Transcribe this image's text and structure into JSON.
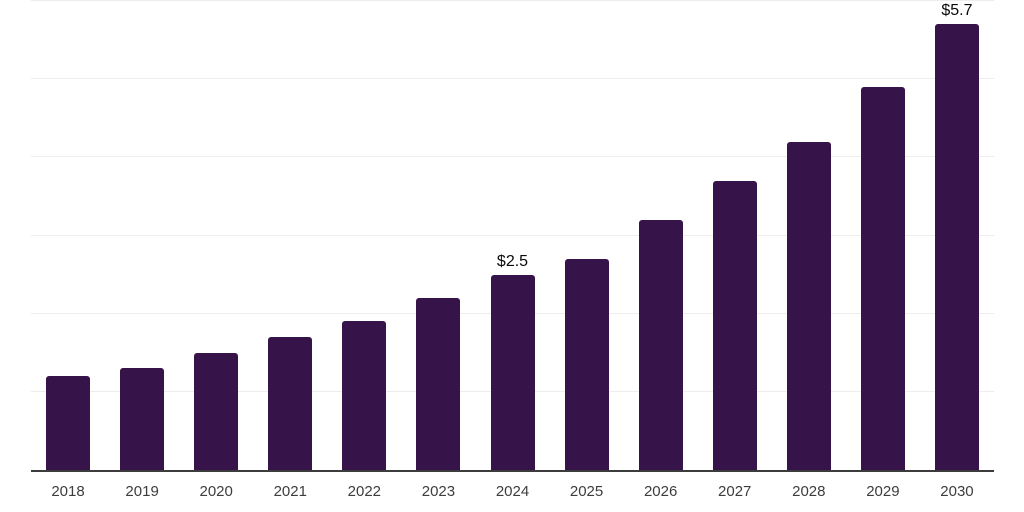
{
  "chart_data": {
    "type": "bar",
    "categories": [
      "2018",
      "2019",
      "2020",
      "2021",
      "2022",
      "2023",
      "2024",
      "2025",
      "2026",
      "2027",
      "2028",
      "2029",
      "2030"
    ],
    "values": [
      1.2,
      1.3,
      1.5,
      1.7,
      1.9,
      2.2,
      2.5,
      2.7,
      3.2,
      3.7,
      4.2,
      4.9,
      5.7
    ],
    "data_labels": {
      "2024": "$2.5",
      "2030": "$5.7"
    },
    "ylim": [
      0,
      6
    ],
    "gridline_interval": 1,
    "grid": "horizontal",
    "legend": "none",
    "y_tick_labels_visible": false,
    "colors": {
      "bar": "#361349",
      "gridline": "#ededed",
      "axis": "#3c3c3c",
      "tick_label": "#3d3d3d",
      "data_label": "#0a0a0a",
      "background": "#ffffff"
    }
  }
}
